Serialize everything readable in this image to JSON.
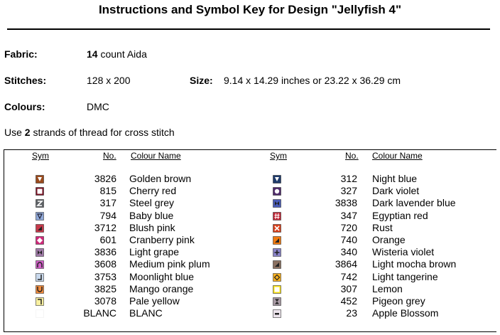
{
  "title": "Instructions and Symbol Key for Design \"Jellyfish 4\"",
  "fabric": {
    "label": "Fabric:",
    "count": "14",
    "rest": " count Aida"
  },
  "stitches": {
    "label": "Stitches:",
    "value": "128 x 200"
  },
  "size": {
    "label": "Size:",
    "value": "9.14 x 14.29 inches or 23.22 x 36.29 cm"
  },
  "colours": {
    "label": "Colours:",
    "value": "DMC"
  },
  "note": {
    "pre": "Use ",
    "strands": "2",
    "post": " strands of thread for cross stitch"
  },
  "headers": {
    "sym": "Sym",
    "no": "No.",
    "name": "Colour Name"
  },
  "left": [
    {
      "no": "3826",
      "name": "Golden brown",
      "color": "#9a4a1c",
      "icon": "triangle-down-icon"
    },
    {
      "no": "815",
      "name": "Cherry red",
      "color": "#7a1224",
      "icon": "square-outline-icon"
    },
    {
      "no": "317",
      "name": "Steel grey",
      "color": "#5e6266",
      "icon": "z-icon"
    },
    {
      "no": "794",
      "name": "Baby blue",
      "color": "#8fa8d8",
      "icon": "triangle-down-outline-icon"
    },
    {
      "no": "3712",
      "name": "Blush pink",
      "color": "#c6394a",
      "icon": "half-triangle-icon"
    },
    {
      "no": "601",
      "name": "Cranberry pink",
      "color": "#d0287a",
      "icon": "diamond-icon"
    },
    {
      "no": "3836",
      "name": "Light grape",
      "color": "#a07aa8",
      "icon": "bowtie-icon"
    },
    {
      "no": "3608",
      "name": "Medium pink plum",
      "color": "#d260c8",
      "icon": "arch-icon"
    },
    {
      "no": "3753",
      "name": "Moonlight blue",
      "color": "#c8d8ec",
      "icon": "corner-icon"
    },
    {
      "no": "3825",
      "name": "Mango orange",
      "color": "#f08a3c",
      "icon": "cup-icon"
    },
    {
      "no": "3078",
      "name": "Pale yellow",
      "color": "#f8f0a0",
      "icon": "corner-top-icon"
    },
    {
      "no": "BLANC",
      "name": "BLANC",
      "color": "#ffffff",
      "icon": "blank-icon"
    }
  ],
  "right": [
    {
      "no": "312",
      "name": "Night blue",
      "color": "#1e3a6a",
      "icon": "triangle-down-icon"
    },
    {
      "no": "327",
      "name": "Dark violet",
      "color": "#4e2a6a",
      "icon": "circle-icon"
    },
    {
      "no": "3838",
      "name": "Dark lavender blue",
      "color": "#4a5cb8",
      "icon": "bowtie-icon"
    },
    {
      "no": "347",
      "name": "Egyptian red",
      "color": "#c02838",
      "icon": "hash-icon"
    },
    {
      "no": "720",
      "name": "Rust",
      "color": "#d8401c",
      "icon": "x-icon"
    },
    {
      "no": "740",
      "name": "Orange",
      "color": "#f07a10",
      "icon": "half-triangle-icon"
    },
    {
      "no": "340",
      "name": "Wisteria violet",
      "color": "#8a84c8",
      "icon": "plus-icon"
    },
    {
      "no": "3864",
      "name": "Light mocha brown",
      "color": "#8a7060",
      "icon": "half-triangle-icon"
    },
    {
      "no": "742",
      "name": "Light tangerine",
      "color": "#f8b020",
      "icon": "diamond-outline-icon"
    },
    {
      "no": "307",
      "name": "Lemon",
      "color": "#f8e018",
      "icon": "square-outline-icon"
    },
    {
      "no": "452",
      "name": "Pigeon grey",
      "color": "#a89aa4",
      "icon": "hourglass-icon"
    },
    {
      "no": "23",
      "name": "Apple Blossom",
      "color": "#ece4ec",
      "icon": "dash-icon"
    }
  ]
}
